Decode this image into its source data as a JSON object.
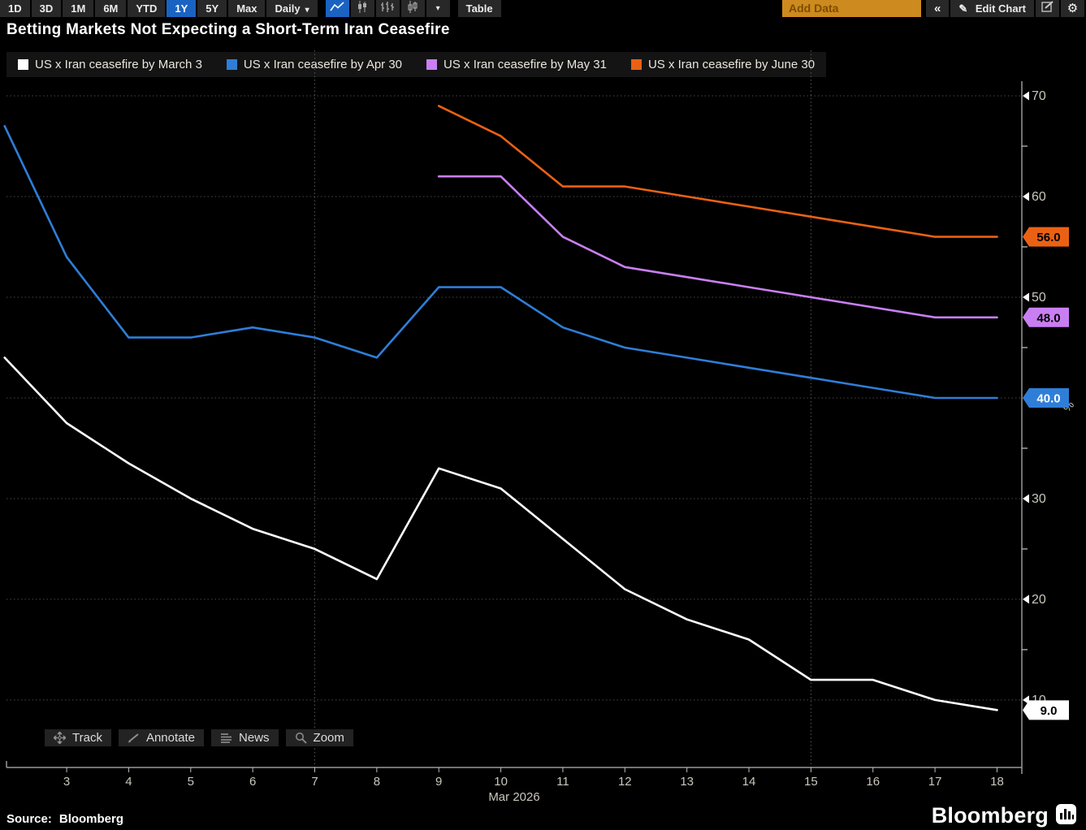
{
  "toolbar": {
    "ranges": [
      "1D",
      "3D",
      "1M",
      "6M",
      "YTD",
      "1Y",
      "5Y",
      "Max"
    ],
    "selected_range": "1Y",
    "frequency": "Daily",
    "table_label": "Table",
    "add_data_placeholder": "Add Data",
    "edit_chart_label": "Edit Chart"
  },
  "icons": {
    "caret": "▾",
    "collapse": "«",
    "pencil": "✎",
    "gear": "⚙"
  },
  "title": "Betting Markets Not Expecting a Short-Term Iran Ceasefire",
  "chart_data": {
    "type": "line",
    "title": "Betting Markets Not Expecting a Short-Term Iran Ceasefire",
    "x_axis": {
      "month_label": "Mar 2026",
      "ticks": [
        3,
        4,
        5,
        6,
        7,
        8,
        9,
        10,
        11,
        12,
        13,
        14,
        15,
        16,
        17,
        18
      ],
      "range": [
        2.03,
        18.4
      ],
      "gridline_days": [
        7,
        15
      ]
    },
    "y_axis": {
      "label": "%",
      "ticks": [
        10,
        20,
        30,
        40,
        50,
        60,
        70
      ],
      "minor_ticks": [
        15,
        25,
        35,
        45,
        55,
        65
      ],
      "range": [
        3.3,
        71.45
      ],
      "side": "right",
      "tick_color": "#cbc7bc"
    },
    "series": [
      {
        "name": "US x Iran ceasefire by March 3",
        "color": "#ffffff",
        "last_label": "9.0",
        "label_text_color": "#000000",
        "x": [
          2,
          3,
          4,
          5,
          6,
          7,
          8,
          9,
          10,
          11,
          12,
          13,
          14,
          15,
          16,
          17,
          18
        ],
        "values": [
          44,
          37.5,
          33.5,
          30,
          27,
          25,
          22,
          33,
          31,
          26,
          21,
          18,
          16,
          12,
          12,
          10,
          9
        ]
      },
      {
        "name": "US x Iran ceasefire by Apr 30",
        "color": "#2e7ed8",
        "last_label": "40.0",
        "label_text_color": "#ffffff",
        "x": [
          2,
          3,
          4,
          5,
          6,
          7,
          8,
          9,
          10,
          11,
          12,
          13,
          14,
          15,
          16,
          17,
          18
        ],
        "values": [
          67,
          54,
          46,
          46,
          47,
          46,
          44,
          51,
          51,
          47,
          45,
          44,
          43,
          42,
          41,
          40,
          40
        ]
      },
      {
        "name": "US x Iran ceasefire by May 31",
        "color": "#c97ff2",
        "last_label": "48.0",
        "label_text_color": "#000000",
        "x": [
          9,
          10,
          11,
          12,
          13,
          14,
          15,
          16,
          17,
          18
        ],
        "values": [
          62,
          62,
          56,
          53,
          52,
          51,
          50,
          49,
          48,
          48
        ]
      },
      {
        "name": "US x Iran ceasefire by June 30",
        "color": "#eb6114",
        "last_label": "56.0",
        "label_text_color": "#000000",
        "x": [
          9,
          10,
          11,
          12,
          13,
          14,
          15,
          16,
          17,
          18
        ],
        "values": [
          69,
          66,
          61,
          61,
          60,
          59,
          58,
          57,
          56,
          56
        ]
      }
    ],
    "grid": true,
    "legend_position": "top"
  },
  "chart_buttons": [
    {
      "label": "Track"
    },
    {
      "label": "Annotate"
    },
    {
      "label": "News"
    },
    {
      "label": "Zoom"
    }
  ],
  "footer": {
    "source_prefix": "Source:",
    "source_value": "Bloomberg",
    "brand_name": "Bloomberg"
  }
}
